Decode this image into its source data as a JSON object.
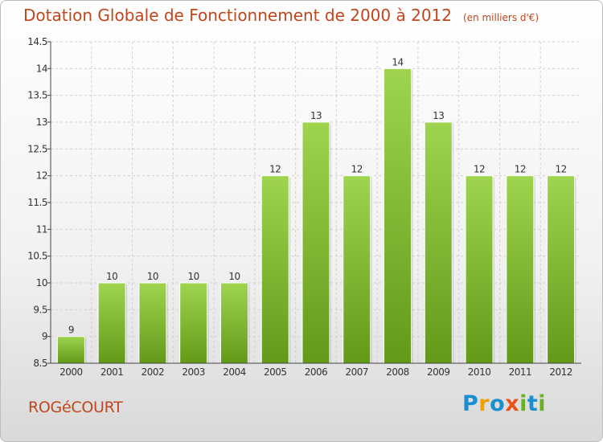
{
  "title": "Dotation Globale de Fonctionnement de 2000 à 2012",
  "unit": "(en milliers d'€)",
  "place": "ROGéCOURT",
  "logo": {
    "text": "Proxiti",
    "letters": [
      {
        "ch": "P",
        "color": "#1a8fd0"
      },
      {
        "ch": "r",
        "color": "#f2a000"
      },
      {
        "ch": "o",
        "color": "#1a8fd0"
      },
      {
        "ch": "x",
        "color": "#e8531d"
      },
      {
        "ch": "i",
        "color": "#6ab023"
      },
      {
        "ch": "t",
        "color": "#1a8fd0"
      },
      {
        "ch": "i",
        "color": "#6ab023"
      }
    ]
  },
  "colors": {
    "title": "#c0461c",
    "bar_top": "#9fd44f",
    "bar_bottom": "#629a18",
    "grid": "#d0d0d0",
    "axis": "#444444"
  },
  "chart_data": {
    "type": "bar",
    "categories": [
      "2000",
      "2001",
      "2002",
      "2003",
      "2004",
      "2005",
      "2006",
      "2007",
      "2008",
      "2009",
      "2010",
      "2011",
      "2012"
    ],
    "values": [
      9,
      10,
      10,
      10,
      10,
      12,
      13,
      12,
      14,
      13,
      12,
      12,
      12
    ],
    "data_labels": [
      "9",
      "10",
      "10",
      "10",
      "10",
      "12",
      "13",
      "12",
      "14",
      "13",
      "12",
      "12",
      "12"
    ],
    "ylim": [
      8.5,
      14.5
    ],
    "yticks": [
      8.5,
      9,
      9.5,
      10,
      10.5,
      11,
      11.5,
      12,
      12.5,
      13,
      13.5,
      14,
      14.5
    ],
    "ytick_labels": [
      "8.5",
      "9",
      "9.5",
      "10",
      "10.5",
      "11",
      "11.5",
      "12",
      "12.5",
      "13",
      "13.5",
      "14",
      "14.5"
    ],
    "grid": true,
    "xlabel": "",
    "ylabel": ""
  }
}
